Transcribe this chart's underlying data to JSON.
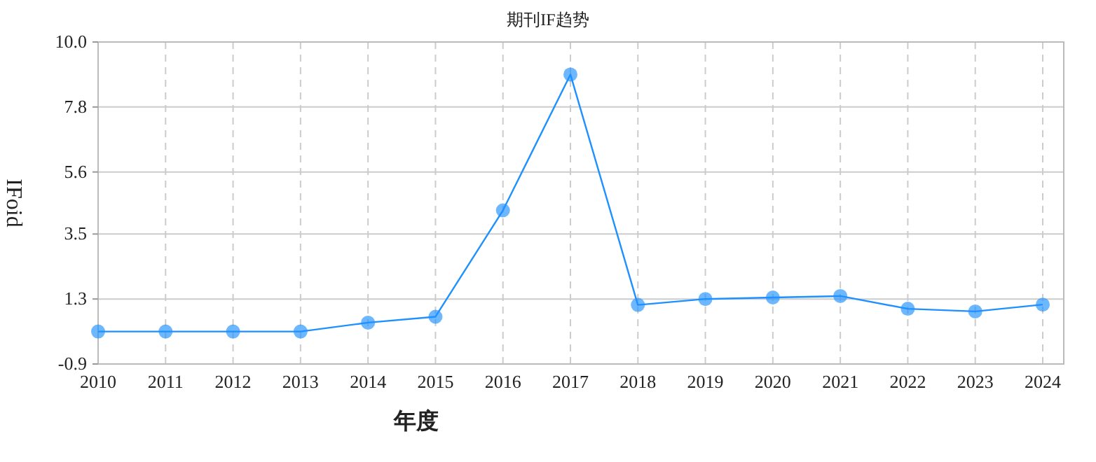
{
  "chart_data": {
    "type": "line",
    "title": "期刊IF趋势",
    "xlabel": "年度",
    "ylabel": "IFoid",
    "categories": [
      "2010",
      "2011",
      "2012",
      "2013",
      "2014",
      "2015",
      "2016",
      "2017",
      "2018",
      "2019",
      "2020",
      "2021",
      "2022",
      "2023",
      "2024"
    ],
    "series": [
      {
        "color": "#1e90ff",
        "values": [
          0.2,
          0.2,
          0.2,
          0.2,
          0.5,
          0.7,
          4.3,
          8.9,
          1.1,
          1.3,
          1.35,
          1.4,
          0.97,
          0.88,
          1.11
        ]
      }
    ],
    "ylim": [
      -0.9,
      10.0
    ],
    "yticks": [
      -0.9,
      1.3,
      3.5,
      5.6,
      7.8,
      {
        "value": 10.0,
        "label": "10.0"
      }
    ],
    "grid": true,
    "marker": "circle",
    "line_style": "solid"
  }
}
